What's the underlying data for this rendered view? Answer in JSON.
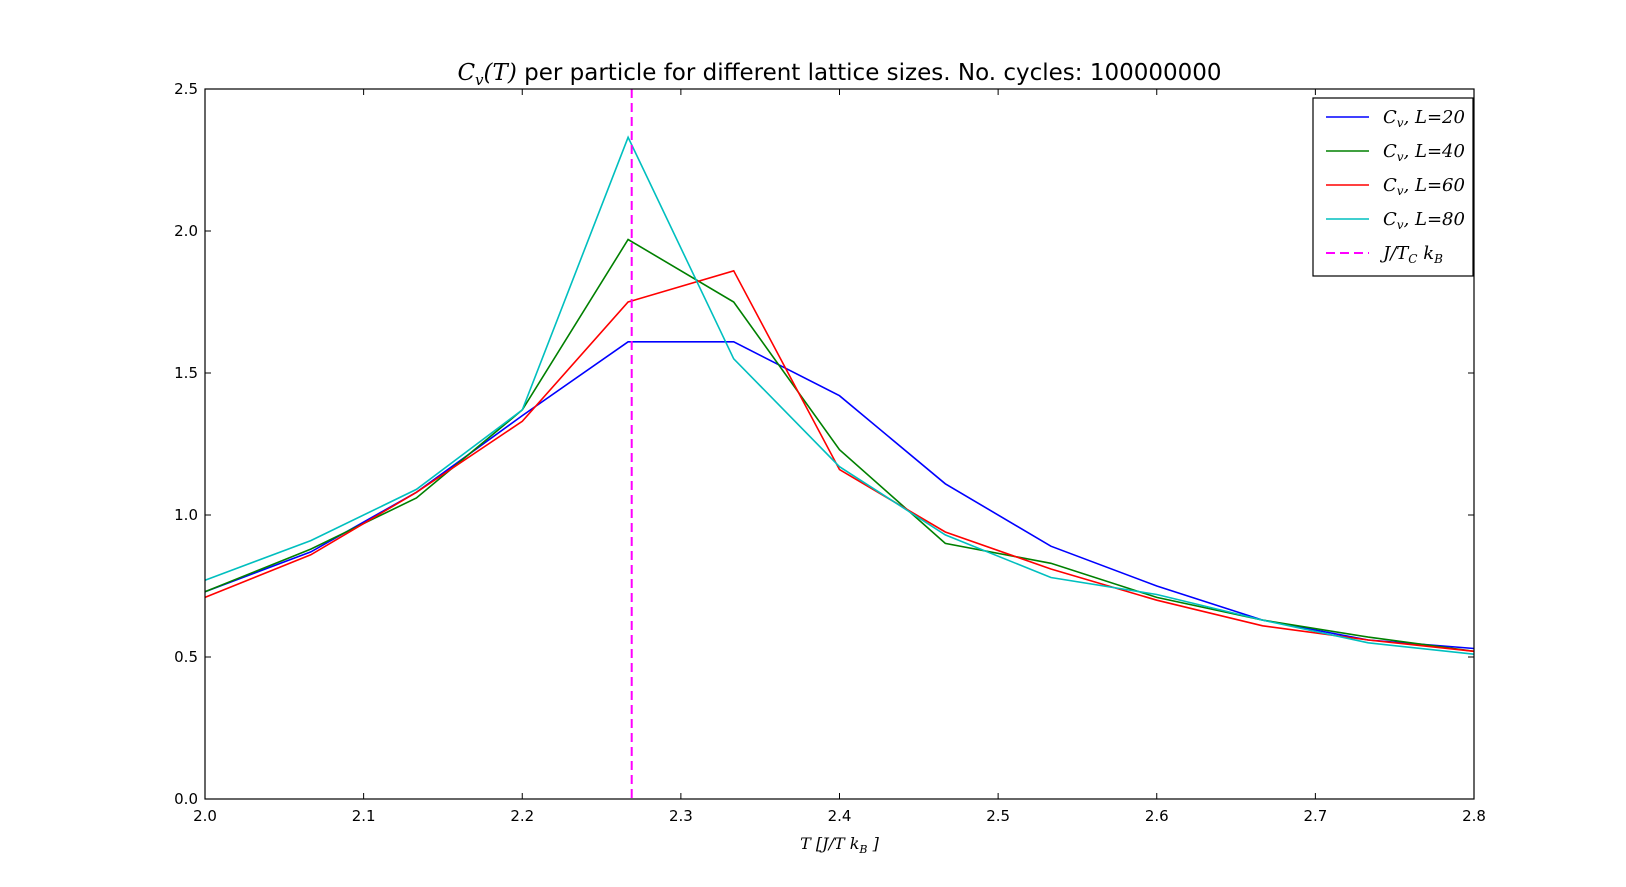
{
  "chart_data": {
    "type": "line",
    "title": {
      "math": "C_v(T)",
      "text": "per particle for different lattice sizes. No. cycles: 100000000"
    },
    "xlabel": "T [J/T k_B]",
    "ylabel": "",
    "xlim": [
      2.0,
      2.8
    ],
    "ylim": [
      0.0,
      2.5
    ],
    "xticks": [
      "2.0",
      "2.1",
      "2.2",
      "2.3",
      "2.4",
      "2.5",
      "2.6",
      "2.7",
      "2.8"
    ],
    "yticks": [
      "0.0",
      "0.5",
      "1.0",
      "1.5",
      "2.0",
      "2.5"
    ],
    "grid": false,
    "legend_position": "top-right",
    "x": [
      2.0,
      2.0667,
      2.1333,
      2.2,
      2.2667,
      2.3333,
      2.4,
      2.4667,
      2.5333,
      2.6,
      2.6667,
      2.7333,
      2.8
    ],
    "series": [
      {
        "name": "C_v, L=20",
        "color": "#0000ff",
        "values": [
          0.73,
          0.87,
          1.08,
          1.35,
          1.61,
          1.61,
          1.42,
          1.11,
          0.89,
          0.75,
          0.63,
          0.56,
          0.53
        ]
      },
      {
        "name": "C_v, L=40",
        "color": "#008000",
        "values": [
          0.73,
          0.88,
          1.06,
          1.37,
          1.97,
          1.75,
          1.23,
          0.9,
          0.83,
          0.71,
          0.63,
          0.57,
          0.52
        ]
      },
      {
        "name": "C_v, L=60",
        "color": "#ff0000",
        "values": [
          0.71,
          0.86,
          1.08,
          1.33,
          1.75,
          1.86,
          1.16,
          0.94,
          0.81,
          0.7,
          0.61,
          0.56,
          0.52
        ]
      },
      {
        "name": "C_v, L=80",
        "color": "#00bfbf",
        "values": [
          0.77,
          0.91,
          1.09,
          1.37,
          2.33,
          1.55,
          1.17,
          0.93,
          0.78,
          0.72,
          0.63,
          0.55,
          0.51
        ]
      }
    ],
    "reference_line": {
      "name": "J/T_C k_B",
      "x": 2.269,
      "color": "#ff00ff",
      "style": "dashed"
    }
  }
}
